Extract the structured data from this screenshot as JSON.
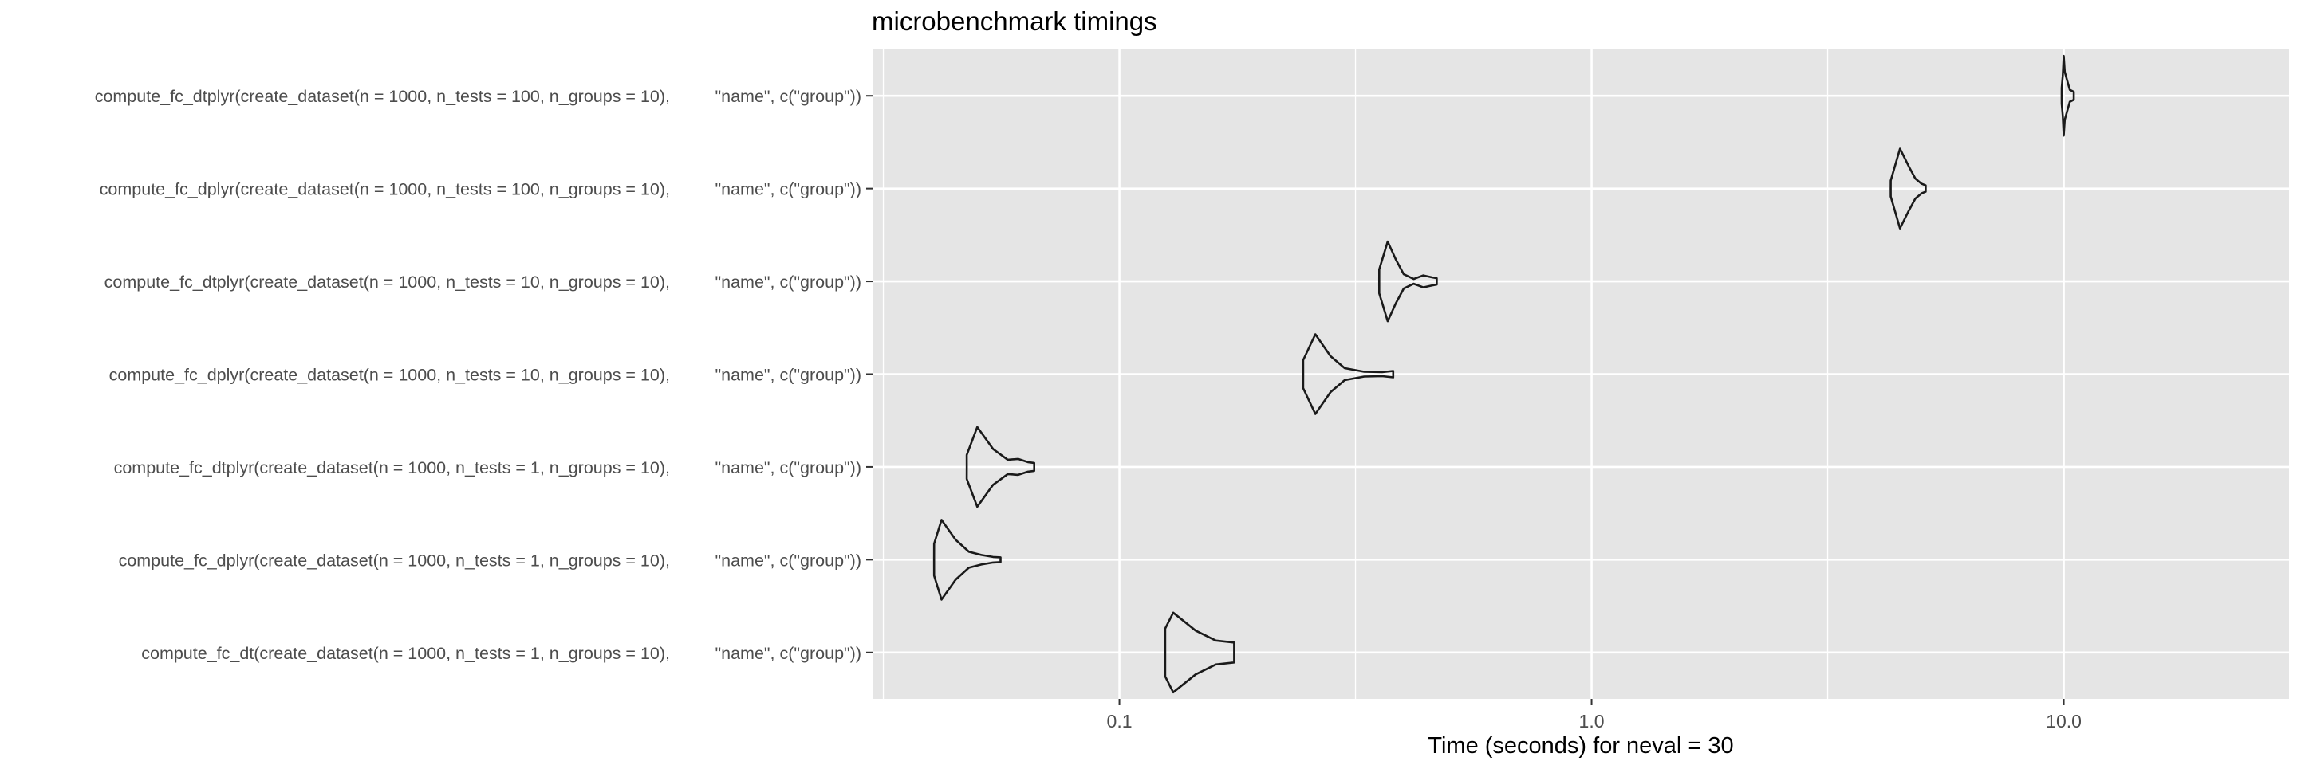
{
  "chart_data": {
    "type": "violin",
    "title": "microbenchmark timings",
    "xlabel": "Time (seconds) for neval = 30",
    "ylabel": "",
    "x_scale": "log10",
    "xlim": [
      0.03,
      30
    ],
    "x_ticks": [
      0.1,
      1.0,
      10.0
    ],
    "x_tick_labels": [
      "0.1",
      "1.0",
      "10.0"
    ],
    "grid": true,
    "panel_background": "#E5E5E5",
    "grid_color": "#FFFFFF",
    "series": [
      {
        "name": "compute_fc_dtplyr(create_dataset(n = 1000, n_tests = 100, n_groups = 10),",
        "expr": "\"name\", c(\"group\"))",
        "values": [
          [
            9.9,
            0.2
          ],
          [
            9.95,
            0.5
          ],
          [
            10.0,
            1.0
          ],
          [
            10.05,
            0.6
          ],
          [
            10.3,
            0.15
          ],
          [
            10.5,
            0.1
          ]
        ]
      },
      {
        "name": "compute_fc_dplyr(create_dataset(n = 1000, n_tests = 100, n_groups = 10),",
        "expr": "\"name\", c(\"group\"))",
        "values": [
          [
            4.3,
            0.2
          ],
          [
            4.5,
            1.0
          ],
          [
            4.7,
            0.55
          ],
          [
            4.85,
            0.25
          ],
          [
            5.0,
            0.12
          ],
          [
            5.1,
            0.08
          ]
        ]
      },
      {
        "name": "compute_fc_dtplyr(create_dataset(n = 1000, n_tests = 10, n_groups = 10),",
        "expr": "\"name\", c(\"group\"))",
        "values": [
          [
            0.355,
            0.3
          ],
          [
            0.37,
            1.0
          ],
          [
            0.385,
            0.55
          ],
          [
            0.4,
            0.18
          ],
          [
            0.42,
            0.06
          ],
          [
            0.44,
            0.15
          ],
          [
            0.46,
            0.1
          ],
          [
            0.47,
            0.08
          ]
        ]
      },
      {
        "name": "compute_fc_dplyr(create_dataset(n = 1000, n_tests = 10, n_groups = 10),",
        "expr": "\"name\", c(\"group\"))",
        "values": [
          [
            0.245,
            0.35
          ],
          [
            0.26,
            1.0
          ],
          [
            0.28,
            0.45
          ],
          [
            0.3,
            0.15
          ],
          [
            0.33,
            0.06
          ],
          [
            0.36,
            0.05
          ],
          [
            0.38,
            0.08
          ]
        ]
      },
      {
        "name": "compute_fc_dtplyr(create_dataset(n = 1000, n_tests = 1, n_groups = 10),",
        "expr": "\"name\", c(\"group\"))",
        "values": [
          [
            0.0475,
            0.3
          ],
          [
            0.05,
            1.0
          ],
          [
            0.054,
            0.45
          ],
          [
            0.058,
            0.18
          ],
          [
            0.061,
            0.2
          ],
          [
            0.064,
            0.12
          ],
          [
            0.066,
            0.1
          ]
        ]
      },
      {
        "name": "compute_fc_dplyr(create_dataset(n = 1000, n_tests = 1, n_groups = 10),",
        "expr": "\"name\", c(\"group\"))",
        "values": [
          [
            0.0405,
            0.4
          ],
          [
            0.042,
            1.0
          ],
          [
            0.045,
            0.5
          ],
          [
            0.048,
            0.2
          ],
          [
            0.051,
            0.12
          ],
          [
            0.054,
            0.07
          ],
          [
            0.056,
            0.06
          ]
        ]
      },
      {
        "name": "compute_fc_dt(create_dataset(n = 1000, n_tests = 1, n_groups = 10),",
        "expr": "\"name\", c(\"group\"))",
        "values": [
          [
            0.125,
            0.6
          ],
          [
            0.13,
            1.0
          ],
          [
            0.145,
            0.55
          ],
          [
            0.16,
            0.3
          ],
          [
            0.175,
            0.25
          ]
        ]
      }
    ]
  }
}
